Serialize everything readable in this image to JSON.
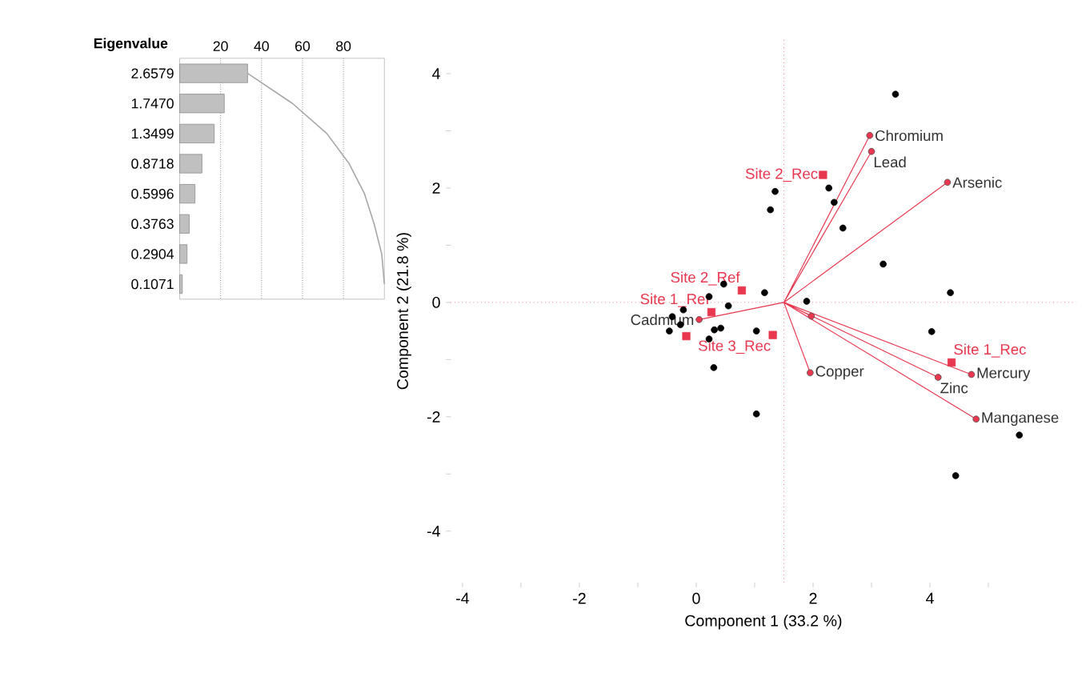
{
  "chart_data": [
    {
      "type": "bar",
      "orientation": "horizontal",
      "ylabel": "Eigenvalue",
      "categories": [
        "2.6579",
        "1.7470",
        "1.3499",
        "0.8718",
        "0.5996",
        "0.3763",
        "0.2904",
        "0.1071"
      ],
      "series": [
        {
          "type": "bar",
          "color": "#c0c0c0",
          "values": [
            33.2,
            21.8,
            16.9,
            10.9,
            7.5,
            4.7,
            3.6,
            1.3
          ]
        },
        {
          "type": "line",
          "color": "#a6a6a6",
          "marker": "none",
          "values": [
            33.2,
            55.1,
            71.9,
            82.8,
            90.3,
            95.0,
            98.7,
            100
          ]
        }
      ],
      "xlim": [
        0,
        100
      ],
      "xticks": [
        20,
        40,
        60,
        80
      ],
      "grid": "x"
    },
    {
      "type": "scatter",
      "xlabel": "Component 1  (33.2 %)",
      "ylabel": "Component 2  (21.8 %)",
      "series": [
        {
          "type": "scatter",
          "color": "#000000",
          "marker": "circle",
          "x": [
            3.41,
            1.35,
            1.27,
            2.27,
            2.36,
            2.51,
            3.2,
            4.35,
            4.03,
            5.53,
            4.44,
            1.03,
            0.3,
            1.89,
            1.17,
            0.47,
            0.22,
            -0.22,
            -0.41,
            -0.46,
            -0.27,
            0.22,
            0.31,
            0.42,
            0.55,
            1.03,
            null
          ],
          "values": [
            3.64,
            1.94,
            1.62,
            2.0,
            1.75,
            1.3,
            0.67,
            0.17,
            -0.51,
            -2.32,
            -3.03,
            -1.95,
            -1.14,
            0.02,
            0.17,
            0.32,
            0.1,
            -0.13,
            -0.25,
            -0.5,
            -0.39,
            -0.64,
            -0.48,
            -0.45,
            -0.06,
            -0.5,
            null
          ]
        },
        {
          "type": "scatter",
          "color": "#e8374f",
          "marker": "square",
          "x": [
            2.17,
            0.78,
            0.26,
            1.31,
            4.37,
            -0.17
          ],
          "values": [
            2.23,
            0.21,
            -0.17,
            -0.57,
            -1.05,
            -0.59
          ],
          "value_labels": [
            "Site 2_Rec",
            "Site 2_Ref",
            "Site 1_Ref",
            "Site 3_Rec",
            "Site 1_Rec",
            null
          ]
        },
        {
          "type": "line",
          "color": "#e8374f",
          "marker": "none",
          "x": [
            1.5,
            2.97,
            null,
            1.5,
            3.0,
            null,
            1.5,
            4.3,
            null,
            1.5,
            1.95,
            null,
            1.5,
            4.14,
            null,
            1.5,
            4.71,
            null,
            1.5,
            4.79,
            null,
            1.5,
            0.05,
            null,
            1.5,
            1.97
          ],
          "values": [
            0,
            2.92,
            null,
            0,
            2.64,
            null,
            0,
            2.1,
            null,
            0,
            -1.23,
            null,
            0,
            -1.31,
            null,
            0,
            -1.26,
            null,
            0,
            -2.04,
            null,
            0,
            -0.3,
            null,
            0,
            -0.24
          ]
        },
        {
          "type": "scatter",
          "color": "#e8374f",
          "marker": "circle",
          "x": [
            2.97,
            3.0,
            4.3,
            1.95,
            4.14,
            4.71,
            4.79,
            0.05,
            1.97
          ],
          "values": [
            2.92,
            2.64,
            2.1,
            -1.23,
            -1.31,
            -1.26,
            -2.04,
            -0.3,
            -0.24
          ],
          "value_labels": [
            "Chromium",
            "Lead",
            "Arsenic",
            "Copper",
            "Zinc",
            "Mercury",
            "Manganese",
            "Cadmium",
            null
          ]
        }
      ],
      "xlim": [
        -4.2,
        6.5
      ],
      "ylim": [
        -4.9,
        4.6
      ],
      "xticks": [
        -4,
        {
          "value": -3,
          "label": null
        },
        -2,
        {
          "value": -1,
          "label": null
        },
        0,
        {
          "value": 1,
          "label": null
        },
        2,
        {
          "value": 3,
          "label": null
        },
        4,
        {
          "value": 5,
          "label": null
        }
      ],
      "yticks": [
        -4,
        {
          "value": -3,
          "label": null
        },
        -2,
        {
          "value": -1,
          "label": null
        },
        0,
        {
          "value": 1,
          "label": null
        },
        2,
        {
          "value": 3,
          "label": null
        },
        4
      ],
      "ref_lines": [
        {
          "axis": "x",
          "value": 1.5,
          "color": "#e8374f",
          "line_style": "dotted"
        },
        {
          "axis": "y",
          "value": 0,
          "color": "#e8374f",
          "line_style": "dotted"
        }
      ],
      "grid": false
    }
  ]
}
